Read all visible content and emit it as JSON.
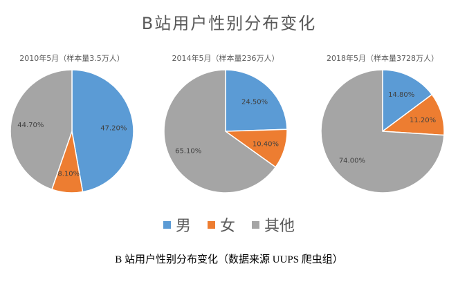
{
  "chart_data": {
    "type": "pie",
    "title": "B站用户性别分布变化",
    "legend": {
      "placement": "bottom",
      "entries": [
        "男",
        "女",
        "其他"
      ]
    },
    "colors": [
      "#5B9BD5",
      "#ED7D31",
      "#A5A5A5"
    ],
    "charts": [
      {
        "subtitle": "2010年5月（样本量3.5万人）",
        "categories": [
          "男",
          "女",
          "其他"
        ],
        "values": [
          47.2,
          8.1,
          44.7
        ],
        "labels": [
          "47.20%",
          "8.10%",
          "44.70%"
        ]
      },
      {
        "subtitle": "2014年5月（样本量236万人）",
        "categories": [
          "男",
          "女",
          "其他"
        ],
        "values": [
          24.5,
          10.4,
          65.1
        ],
        "labels": [
          "24.50%",
          "10.40%",
          "65.10%"
        ]
      },
      {
        "subtitle": "2018年5月（样本量3728万人）",
        "categories": [
          "男",
          "女",
          "其他"
        ],
        "values": [
          14.8,
          11.2,
          74.0
        ],
        "labels": [
          "14.80%",
          "11.20%",
          "74.00%"
        ]
      }
    ]
  },
  "caption": "B 站用户性别分布变化（数据来源 UUPS 爬虫组）"
}
